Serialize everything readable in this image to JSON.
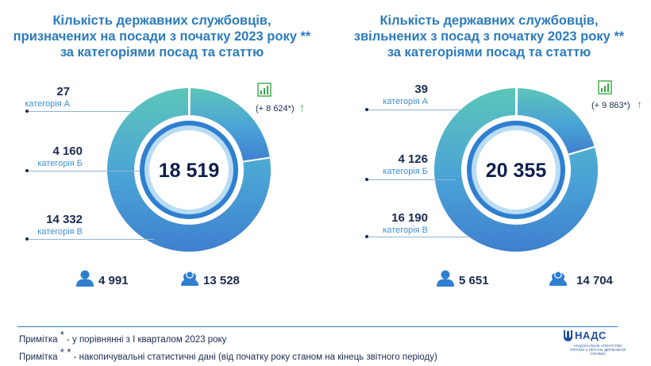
{
  "left": {
    "title_lines": [
      "Кількість державних службовців,",
      "призначених на посади з початку 2023 року **",
      "за категоріями посад та статтю"
    ],
    "total": "18 519",
    "growth": "(+ 8 624*)",
    "segments": [
      {
        "value": "27",
        "category": "категорія А"
      },
      {
        "value": "4 160",
        "category": "категорія Б"
      },
      {
        "value": "14 332",
        "category": "категорія В"
      }
    ],
    "men": "4 991",
    "women": "13 528"
  },
  "right": {
    "title_lines": [
      "Кількість державних службовців,",
      "звільнених з посад з початку 2023 року **",
      "за категоріями посад та статтю"
    ],
    "total": "20 355",
    "growth": "(+ 9 863*)",
    "segments": [
      {
        "value": "39",
        "category": "категорія А"
      },
      {
        "value": "4 126",
        "category": "категорія Б"
      },
      {
        "value": "16 190",
        "category": "категорія В"
      }
    ],
    "men": "5 651",
    "women": "14 704"
  },
  "notes": {
    "note1_label": "Примітка",
    "note1_mark": "*",
    "note1_text": "- у порівнянні з I кварталом 2023 року",
    "note2_label": "Примітка",
    "note2_mark": "* *",
    "note2_text": "- накопичувальні статистичні дані (від початку року станом на кінець звітного періоду)"
  },
  "logo": {
    "name": "НАДС",
    "subtitle": "НАЦІОНАЛЬНЕ АГЕНТСТВО УКРАЇНИ З ПИТАНЬ ДЕРЖАВНОЇ СЛУЖБИ"
  },
  "colors": {
    "title": "#2b7bbf",
    "ring_inner": "#2f7fd0",
    "arrow": "#3aa845"
  },
  "chart_data": [
    {
      "type": "pie",
      "title": "Кількість державних службовців, призначених на посади з початку 2023 року ** за категоріями посад та статтю",
      "categories": [
        "категорія А",
        "категорія Б",
        "категорія В"
      ],
      "values": [
        27,
        4160,
        14332
      ],
      "total": 18519,
      "change_vs_q1": 8624,
      "gender": {
        "men": 4991,
        "women": 13528
      }
    },
    {
      "type": "pie",
      "title": "Кількість державних службовців, звільнених з посад з початку 2023 року ** за категоріями посад та статтю",
      "categories": [
        "категорія А",
        "категорія Б",
        "категорія В"
      ],
      "values": [
        39,
        4126,
        16190
      ],
      "total": 20355,
      "change_vs_q1": 9863,
      "gender": {
        "men": 5651,
        "women": 14704
      }
    }
  ]
}
